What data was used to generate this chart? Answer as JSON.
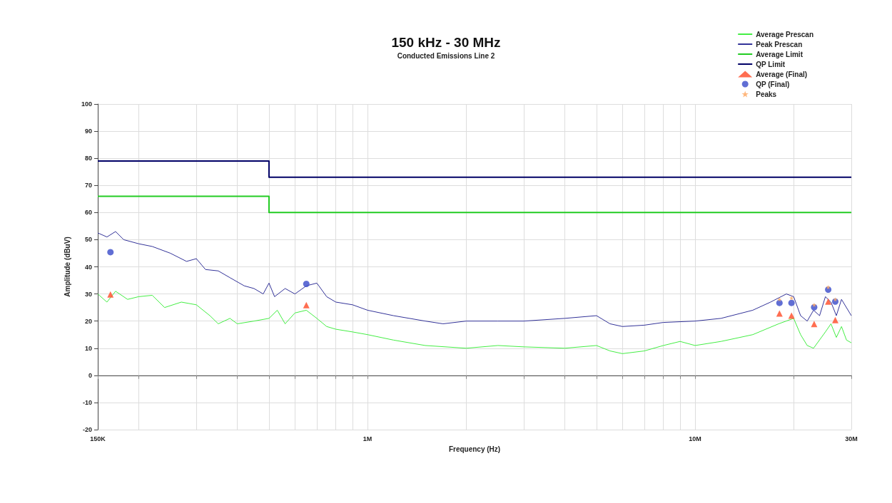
{
  "chart_data": {
    "type": "line",
    "title": "150 kHz - 30 MHz",
    "subtitle": "Conducted Emissions Line 2",
    "xlabel": "Frequency (Hz)",
    "ylabel": "Amplitude (dBuV)",
    "log": "x",
    "grid": true,
    "legend": "top right",
    "xlim": [
      150000,
      30000000
    ],
    "xticks": [
      {
        "value": 150000,
        "label": "150K"
      },
      {
        "value": 200000,
        "label": null
      },
      {
        "value": 300000,
        "label": null
      },
      {
        "value": 400000,
        "label": null
      },
      {
        "value": 500000,
        "label": null
      },
      {
        "value": 600000,
        "label": null
      },
      {
        "value": 700000,
        "label": null
      },
      {
        "value": 800000,
        "label": null
      },
      {
        "value": 900000,
        "label": null
      },
      {
        "value": 1000000,
        "label": "1M"
      },
      {
        "value": 2000000,
        "label": null
      },
      {
        "value": 3000000,
        "label": null
      },
      {
        "value": 4000000,
        "label": null
      },
      {
        "value": 5000000,
        "label": null
      },
      {
        "value": 6000000,
        "label": null
      },
      {
        "value": 7000000,
        "label": null
      },
      {
        "value": 8000000,
        "label": null
      },
      {
        "value": 9000000,
        "label": null
      },
      {
        "value": 10000000,
        "label": "10M"
      },
      {
        "value": 20000000,
        "label": null
      },
      {
        "value": 30000000,
        "label": "30M"
      }
    ],
    "ylim": [
      -20,
      100
    ],
    "yticks": [
      -20,
      -10,
      0,
      10,
      20,
      30,
      40,
      50,
      60,
      70,
      80,
      90,
      100
    ],
    "series": [
      {
        "name": "Average Prescan",
        "color": "#44ee44",
        "marker": "none",
        "x": [
          150000,
          160000,
          170000,
          185000,
          200000,
          220000,
          240000,
          270000,
          300000,
          330000,
          350000,
          380000,
          400000,
          450000,
          500000,
          530000,
          560000,
          600000,
          650000,
          700000,
          750000,
          800000,
          900000,
          1000000,
          1200000,
          1500000,
          2000000,
          2500000,
          3000000,
          4000000,
          5000000,
          5500000,
          6000000,
          7000000,
          8000000,
          9000000,
          10000000,
          12000000,
          15000000,
          18000000,
          20000000,
          21000000,
          22000000,
          23000000,
          25000000,
          26000000,
          27000000,
          28000000,
          29000000,
          30000000
        ],
        "values": [
          30,
          27,
          31,
          28,
          29,
          29.5,
          25,
          27,
          26,
          22,
          19,
          21,
          19,
          20,
          21,
          24,
          19,
          23,
          24,
          21,
          18,
          17,
          16,
          15,
          13,
          11,
          10,
          11,
          10.5,
          10,
          11,
          9,
          8,
          9,
          11,
          12.5,
          11,
          12.5,
          15,
          19,
          21,
          15,
          11,
          10,
          16,
          19,
          14,
          18,
          13,
          12
        ]
      },
      {
        "name": "Peak Prescan",
        "color": "#333399",
        "marker": "none",
        "x": [
          150000,
          160000,
          170000,
          180000,
          200000,
          220000,
          250000,
          280000,
          300000,
          320000,
          350000,
          380000,
          420000,
          450000,
          480000,
          500000,
          520000,
          560000,
          600000,
          650000,
          700000,
          750000,
          800000,
          900000,
          1000000,
          1200000,
          1500000,
          1700000,
          2000000,
          2500000,
          3000000,
          4000000,
          5000000,
          5500000,
          6000000,
          7000000,
          8000000,
          10000000,
          12000000,
          15000000,
          17000000,
          19000000,
          20000000,
          21000000,
          22000000,
          23000000,
          24000000,
          25000000,
          26000000,
          27000000,
          28000000,
          30000000
        ],
        "values": [
          52.5,
          51,
          53,
          50,
          48.5,
          47.5,
          45,
          42,
          43,
          39,
          38.5,
          36,
          33,
          32,
          30,
          34,
          29,
          32,
          30,
          33,
          34,
          29,
          27,
          26,
          24,
          22,
          20,
          19,
          20,
          20,
          20,
          21,
          22,
          19,
          18,
          18.5,
          19.5,
          20,
          21,
          24,
          27,
          30,
          29,
          22,
          20,
          24,
          22,
          29,
          27,
          22,
          28,
          22
        ]
      },
      {
        "name": "Average Limit",
        "type": "step",
        "color": "#22cc22",
        "marker": "none",
        "x": [
          150000,
          500000,
          30000000
        ],
        "values": [
          66,
          60,
          60
        ]
      },
      {
        "name": "QP Limit",
        "type": "step",
        "color": "#000066",
        "marker": "none",
        "x": [
          150000,
          500000,
          30000000
        ],
        "values": [
          79,
          73,
          73
        ]
      },
      {
        "name": "Average (Final)",
        "type": "scatter",
        "color": "#ff5533",
        "marker": "triangle",
        "x": [
          164000,
          650000,
          18100000,
          19700000,
          23100000,
          25500000,
          26800000
        ],
        "values": [
          29.8,
          25.9,
          22.8,
          22,
          18.9,
          27.2,
          20.4
        ]
      },
      {
        "name": "QP (Final)",
        "type": "scatter",
        "color": "#4455cc",
        "marker": "circle",
        "x": [
          164000,
          650000,
          18100000,
          19700000,
          23100000,
          25500000,
          26800000
        ],
        "values": [
          45.4,
          33.7,
          26.7,
          26.7,
          25.1,
          31.6,
          27.2
        ]
      },
      {
        "name": "Peaks",
        "type": "scatter",
        "color": "#ffaa66",
        "marker": "star",
        "x": [
          18100000,
          19700000,
          23100000,
          25500000,
          26800000
        ],
        "values": [
          28,
          28.5,
          26,
          32.5,
          28
        ]
      }
    ]
  }
}
